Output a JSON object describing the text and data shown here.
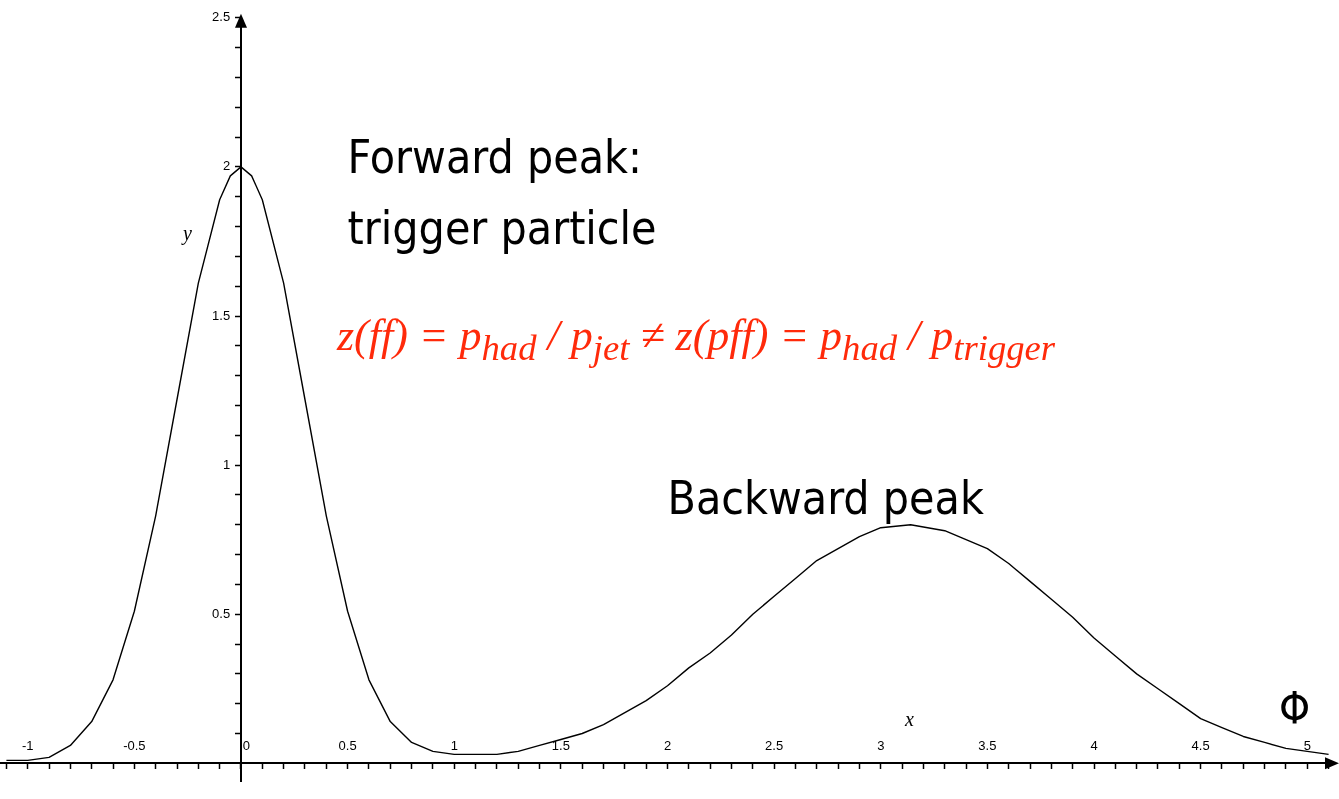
{
  "chart_data": {
    "type": "line",
    "xlabel": "x",
    "ylabel": "y",
    "annotations": [
      "Forward peak:\ntrigger particle",
      "z(ff) = p$_{had}$ / p$_{jet}$ ≠ z(pff) = p$_{had}$ / p$_{trigger}$",
      "Backward peak",
      "Φ"
    ],
    "x": [
      -1.1,
      -1.0,
      -0.9,
      -0.8,
      -0.7,
      -0.6,
      -0.5,
      -0.4,
      -0.3,
      -0.2,
      -0.1,
      -0.05,
      0,
      0.05,
      0.1,
      0.2,
      0.3,
      0.4,
      0.5,
      0.6,
      0.7,
      0.8,
      0.9,
      1.0,
      1.1,
      1.2,
      1.3,
      1.4,
      1.5,
      1.6,
      1.7,
      1.8,
      1.9,
      2.0,
      2.1,
      2.2,
      2.3,
      2.4,
      2.5,
      2.6,
      2.7,
      2.8,
      2.9,
      3.0,
      3.14,
      3.3,
      3.4,
      3.5,
      3.6,
      3.7,
      3.8,
      3.9,
      4.0,
      4.1,
      4.2,
      4.3,
      4.4,
      4.5,
      4.6,
      4.7,
      4.8,
      4.9,
      5.0,
      5.1
    ],
    "series": [
      {
        "color": "#000000",
        "values": [
          0.01,
          0.01,
          0.02,
          0.06,
          0.14,
          0.28,
          0.51,
          0.83,
          1.22,
          1.61,
          1.89,
          1.97,
          2.0,
          1.97,
          1.89,
          1.61,
          1.22,
          0.83,
          0.51,
          0.28,
          0.14,
          0.07,
          0.04,
          0.03,
          0.03,
          0.03,
          0.04,
          0.06,
          0.08,
          0.1,
          0.13,
          0.17,
          0.21,
          0.26,
          0.32,
          0.37,
          0.43,
          0.5,
          0.56,
          0.62,
          0.68,
          0.72,
          0.76,
          0.79,
          0.8,
          0.78,
          0.75,
          0.72,
          0.67,
          0.61,
          0.55,
          0.49,
          0.42,
          0.36,
          0.3,
          0.25,
          0.2,
          0.15,
          0.12,
          0.09,
          0.07,
          0.05,
          0.04,
          0.03
        ]
      }
    ],
    "xlim": [
      -1.13,
      5.13
    ],
    "ylim": [
      -0.06,
      2.5
    ],
    "xticks": [
      {
        "value": -1.1,
        "label": null
      },
      -1,
      {
        "value": -0.9,
        "label": null
      },
      {
        "value": -0.8,
        "label": null
      },
      {
        "value": -0.7,
        "label": null
      },
      {
        "value": -0.6,
        "label": null
      },
      -0.5,
      {
        "value": -0.4,
        "label": null
      },
      {
        "value": -0.3,
        "label": null
      },
      {
        "value": -0.2,
        "label": null
      },
      {
        "value": -0.1,
        "label": null
      },
      0,
      {
        "value": 0.1,
        "label": null
      },
      {
        "value": 0.2,
        "label": null
      },
      {
        "value": 0.3,
        "label": null
      },
      {
        "value": 0.4,
        "label": null
      },
      0.5,
      {
        "value": 0.6,
        "label": null
      },
      {
        "value": 0.7,
        "label": null
      },
      {
        "value": 0.8,
        "label": null
      },
      {
        "value": 0.9,
        "label": null
      },
      1,
      {
        "value": 1.1,
        "label": null
      },
      {
        "value": 1.2,
        "label": null
      },
      {
        "value": 1.3,
        "label": null
      },
      {
        "value": 1.4,
        "label": null
      },
      1.5,
      {
        "value": 1.6,
        "label": null
      },
      {
        "value": 1.7,
        "label": null
      },
      {
        "value": 1.8,
        "label": null
      },
      {
        "value": 1.9,
        "label": null
      },
      2,
      {
        "value": 2.1,
        "label": null
      },
      {
        "value": 2.2,
        "label": null
      },
      {
        "value": 2.3,
        "label": null
      },
      {
        "value": 2.4,
        "label": null
      },
      2.5,
      {
        "value": 2.6,
        "label": null
      },
      {
        "value": 2.7,
        "label": null
      },
      {
        "value": 2.8,
        "label": null
      },
      {
        "value": 2.9,
        "label": null
      },
      3,
      {
        "value": 3.1,
        "label": null
      },
      {
        "value": 3.2,
        "label": null
      },
      {
        "value": 3.3,
        "label": null
      },
      {
        "value": 3.4,
        "label": null
      },
      3.5,
      {
        "value": 3.6,
        "label": null
      },
      {
        "value": 3.7,
        "label": null
      },
      {
        "value": 3.8,
        "label": null
      },
      {
        "value": 3.9,
        "label": null
      },
      4,
      {
        "value": 4.1,
        "label": null
      },
      {
        "value": 4.2,
        "label": null
      },
      {
        "value": 4.3,
        "label": null
      },
      {
        "value": 4.4,
        "label": null
      },
      4.5,
      {
        "value": 4.6,
        "label": null
      },
      {
        "value": 4.7,
        "label": null
      },
      {
        "value": 4.8,
        "label": null
      },
      {
        "value": 4.9,
        "label": null
      },
      5,
      {
        "value": 5.1,
        "label": null
      }
    ],
    "yticks": [
      {
        "value": 0.1,
        "label": null
      },
      {
        "value": 0.2,
        "label": null
      },
      {
        "value": 0.3,
        "label": null
      },
      {
        "value": 0.4,
        "label": null
      },
      0.5,
      {
        "value": 0.6,
        "label": null
      },
      {
        "value": 0.7,
        "label": null
      },
      {
        "value": 0.8,
        "label": null
      },
      {
        "value": 0.9,
        "label": null
      },
      1,
      {
        "value": 1.1,
        "label": null
      },
      {
        "value": 1.2,
        "label": null
      },
      {
        "value": 1.3,
        "label": null
      },
      {
        "value": 1.4,
        "label": null
      },
      1.5,
      {
        "value": 1.6,
        "label": null
      },
      {
        "value": 1.7,
        "label": null
      },
      {
        "value": 1.8,
        "label": null
      },
      {
        "value": 1.9,
        "label": null
      },
      2,
      {
        "value": 2.1,
        "label": null
      },
      {
        "value": 2.2,
        "label": null
      },
      {
        "value": 2.3,
        "label": null
      },
      {
        "value": 2.4,
        "label": null
      },
      2.5
    ],
    "grid": false,
    "legend": false,
    "marker": "none",
    "line_style": "solid"
  }
}
